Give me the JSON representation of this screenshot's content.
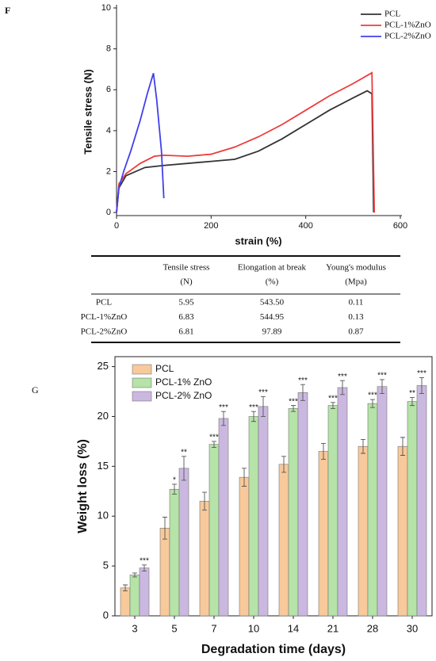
{
  "chart_data": [
    {
      "type": "line",
      "label": "F",
      "xlabel": "strain (%)",
      "ylabel": "Tensile stress (N)",
      "xlim": [
        0,
        600
      ],
      "xticks": [
        0,
        200,
        400,
        600
      ],
      "ylim": [
        -0.15,
        10
      ],
      "yticks": [
        0,
        2,
        4,
        6,
        8,
        10
      ],
      "legend": "upper right",
      "series": [
        {
          "name": "PCL",
          "color": "#333333",
          "x": [
            0,
            5,
            20,
            60,
            100,
            200,
            250,
            300,
            350,
            400,
            450,
            500,
            530,
            540,
            543.5
          ],
          "values": [
            0,
            1.2,
            1.8,
            2.2,
            2.3,
            2.5,
            2.6,
            3.0,
            3.6,
            4.3,
            5.0,
            5.6,
            5.95,
            5.8,
            0
          ]
        },
        {
          "name": "PCL-1%ZnO",
          "color": "#ee3b3b",
          "x": [
            0,
            5,
            20,
            50,
            80,
            100,
            150,
            200,
            250,
            300,
            350,
            400,
            450,
            500,
            540,
            545
          ],
          "values": [
            0,
            1.4,
            1.9,
            2.4,
            2.75,
            2.8,
            2.75,
            2.85,
            3.2,
            3.7,
            4.3,
            5.0,
            5.7,
            6.3,
            6.83,
            0
          ]
        },
        {
          "name": "PCL-2%ZnO",
          "color": "#4040ee",
          "x": [
            0,
            5,
            15,
            30,
            50,
            65,
            78,
            85,
            95,
            100
          ],
          "values": [
            0,
            1.2,
            2.0,
            3.0,
            4.5,
            5.8,
            6.81,
            5.5,
            3.0,
            0.7
          ]
        }
      ]
    },
    {
      "type": "bar",
      "label": "G",
      "xlabel": "Degradation time (days)",
      "ylabel": "Weight loss (%)",
      "categories": [
        "3",
        "5",
        "7",
        "10",
        "14",
        "21",
        "28",
        "30"
      ],
      "ylim": [
        0,
        26
      ],
      "yticks": [
        0,
        5,
        10,
        15,
        20,
        25
      ],
      "legend": "upper left",
      "series": [
        {
          "name": "PCL",
          "color": "#f8c99a",
          "values": [
            2.8,
            8.8,
            11.5,
            13.9,
            15.2,
            16.5,
            17.0,
            17.0
          ],
          "errors": [
            0.3,
            1.1,
            0.9,
            0.9,
            0.8,
            0.8,
            0.7,
            0.9
          ]
        },
        {
          "name": "PCL-1% ZnO",
          "color": "#b5e3a8",
          "values": [
            4.1,
            12.7,
            17.2,
            20.0,
            20.8,
            21.1,
            21.3,
            21.5
          ],
          "errors": [
            0.2,
            0.5,
            0.3,
            0.5,
            0.3,
            0.3,
            0.4,
            0.4
          ],
          "annotations": [
            null,
            "*",
            "***",
            "***",
            "***",
            "***",
            "***",
            "**"
          ]
        },
        {
          "name": "PCL-2% ZnO",
          "color": "#cbb8e0",
          "values": [
            4.8,
            14.8,
            19.8,
            21.0,
            22.4,
            22.9,
            23.0,
            23.1
          ],
          "errors": [
            0.3,
            1.2,
            0.7,
            1.0,
            0.8,
            0.7,
            0.7,
            0.8
          ],
          "annotations": [
            "***",
            "**",
            "***",
            "***",
            "***",
            "***",
            "***",
            "***"
          ]
        }
      ]
    }
  ],
  "table": {
    "header": [
      [
        "Tensile stress",
        "(N)"
      ],
      [
        "Elongation at break",
        "(%)"
      ],
      [
        "Young's modulus",
        "(Mpa)"
      ]
    ],
    "rows": [
      [
        "PCL",
        "5.95",
        "543.50",
        "0.11"
      ],
      [
        "PCL-1%ZnO",
        "6.83",
        "544.95",
        "0.13"
      ],
      [
        "PCL-2%ZnO",
        "6.81",
        "97.89",
        "0.87"
      ]
    ]
  }
}
